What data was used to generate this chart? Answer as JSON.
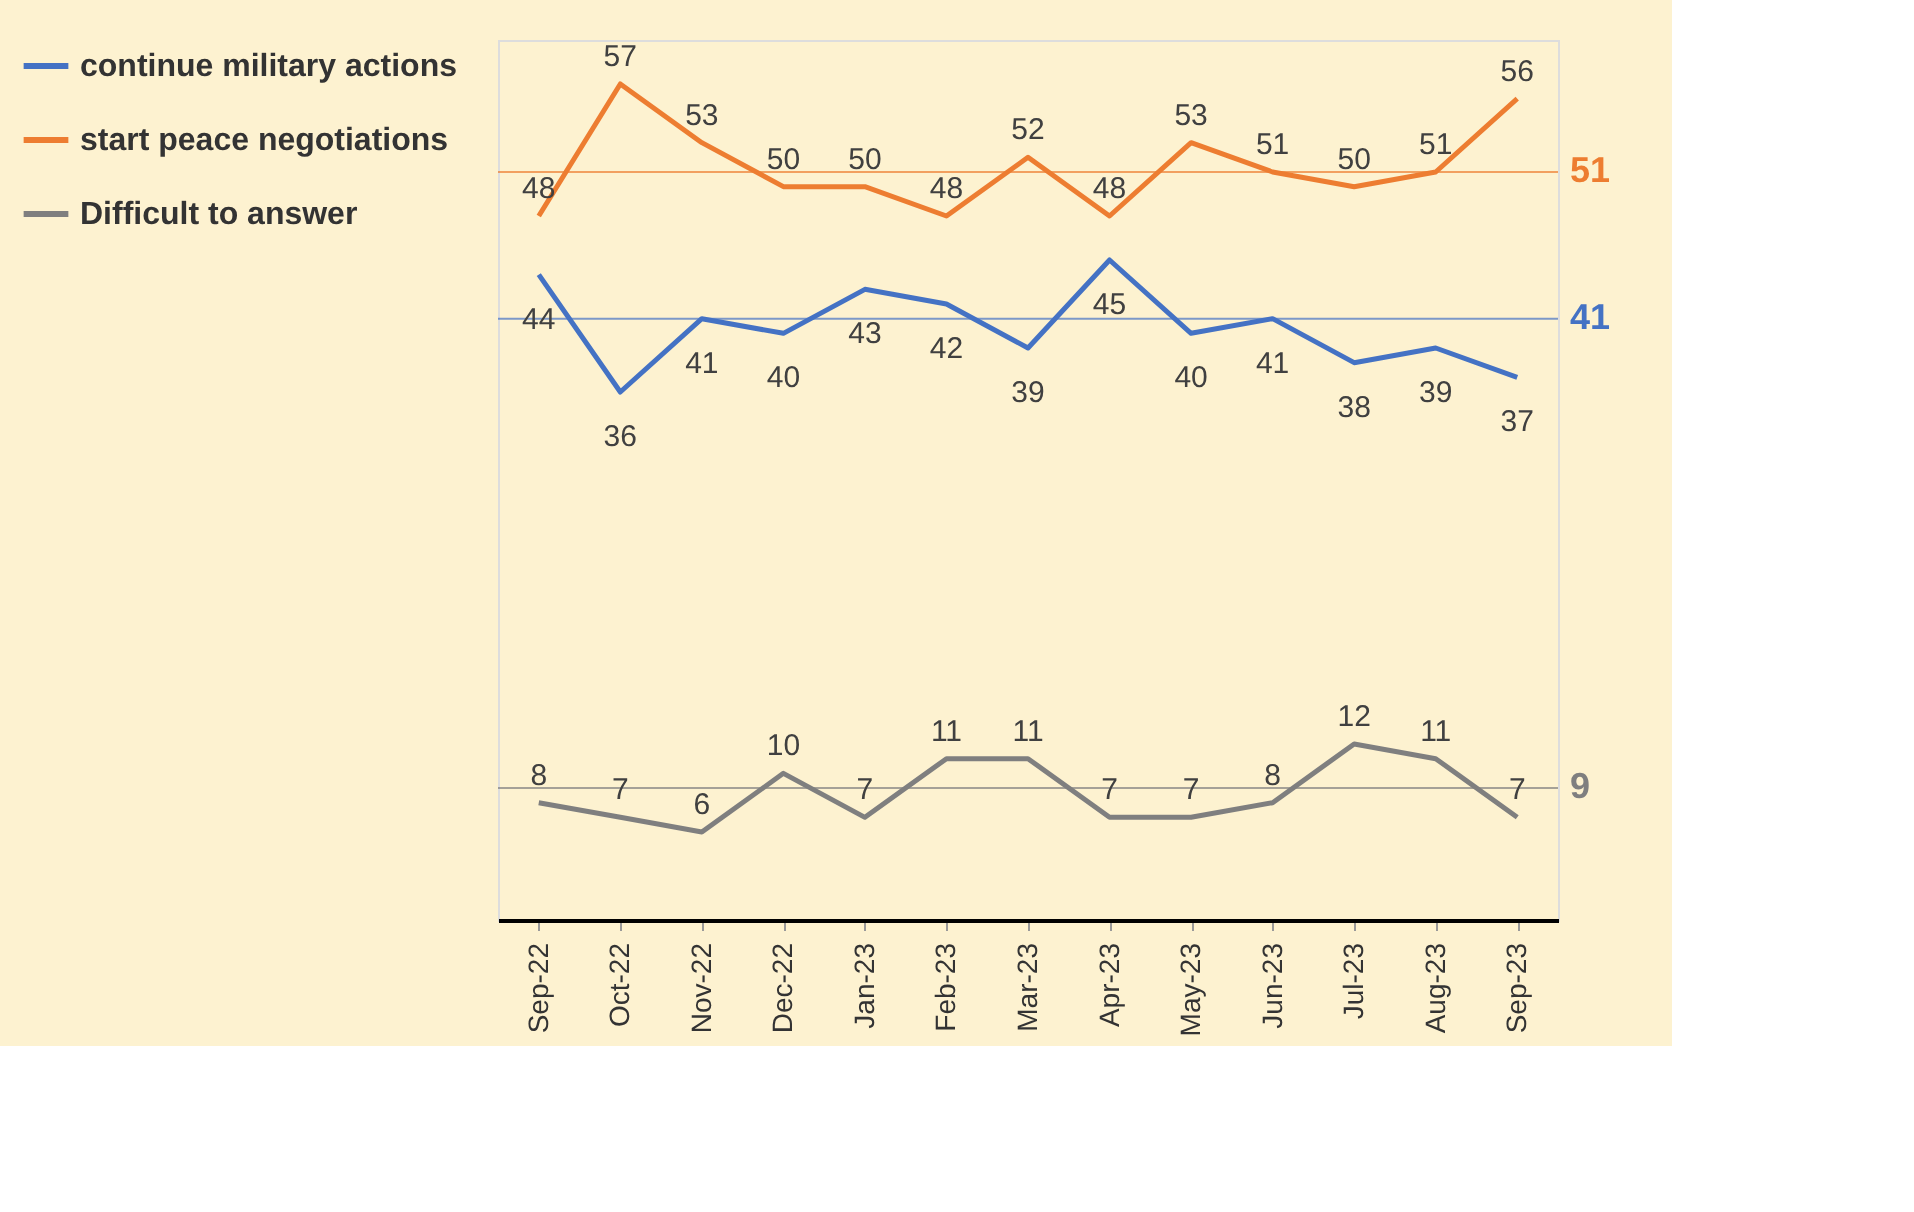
{
  "chart_data": {
    "type": "line",
    "categories": [
      "Sep-22",
      "Oct-22",
      "Nov-22",
      "Dec-22",
      "Jan-23",
      "Feb-23",
      "Mar-23",
      "Apr-23",
      "May-23",
      "Jun-23",
      "Jul-23",
      "Aug-23",
      "Sep-23"
    ],
    "series": [
      {
        "name": "continue military actions",
        "color": "#4472c4",
        "values": [
          44,
          36,
          41,
          40,
          43,
          42,
          39,
          45,
          40,
          41,
          38,
          39,
          37
        ]
      },
      {
        "name": "start peace negotiations",
        "color": "#ed7d31",
        "values": [
          48,
          57,
          53,
          50,
          50,
          48,
          52,
          48,
          53,
          51,
          50,
          51,
          56
        ]
      },
      {
        "name": "Difficult to answer",
        "color": "#7f7f7f",
        "values": [
          8,
          7,
          6,
          10,
          7,
          11,
          11,
          7,
          7,
          8,
          12,
          11,
          7
        ]
      }
    ],
    "ylim": [
      0,
      60
    ],
    "tick_labels": "x",
    "data_labels": true,
    "legend": "left",
    "marker": "none",
    "line_style": "solid",
    "grid": false,
    "ref_lines": [
      {
        "axis": "y",
        "value": 51,
        "label": "51",
        "color": "#ed7d31"
      },
      {
        "axis": "y",
        "value": 41,
        "label": "41",
        "color": "#4472c4"
      },
      {
        "axis": "y",
        "value": 9,
        "label": "9",
        "color": "#7f7f7f"
      }
    ]
  }
}
